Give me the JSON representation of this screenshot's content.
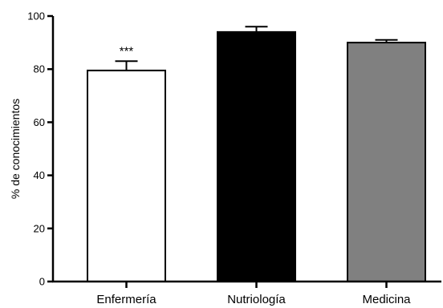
{
  "chart_data": {
    "type": "bar",
    "title": "",
    "xlabel": "",
    "ylabel": "% de conocimientos",
    "ylim": [
      0,
      100
    ],
    "yticks": [
      0,
      20,
      40,
      60,
      80,
      100
    ],
    "grid": false,
    "categories": [
      "Enfermería",
      "Nutriología",
      "Medicina"
    ],
    "values": [
      79.5,
      94,
      90
    ],
    "errors": [
      3.5,
      2,
      1
    ],
    "bar_colors": [
      "#ffffff",
      "#000000",
      "#808080"
    ],
    "annotations": [
      "***",
      "",
      ""
    ]
  }
}
